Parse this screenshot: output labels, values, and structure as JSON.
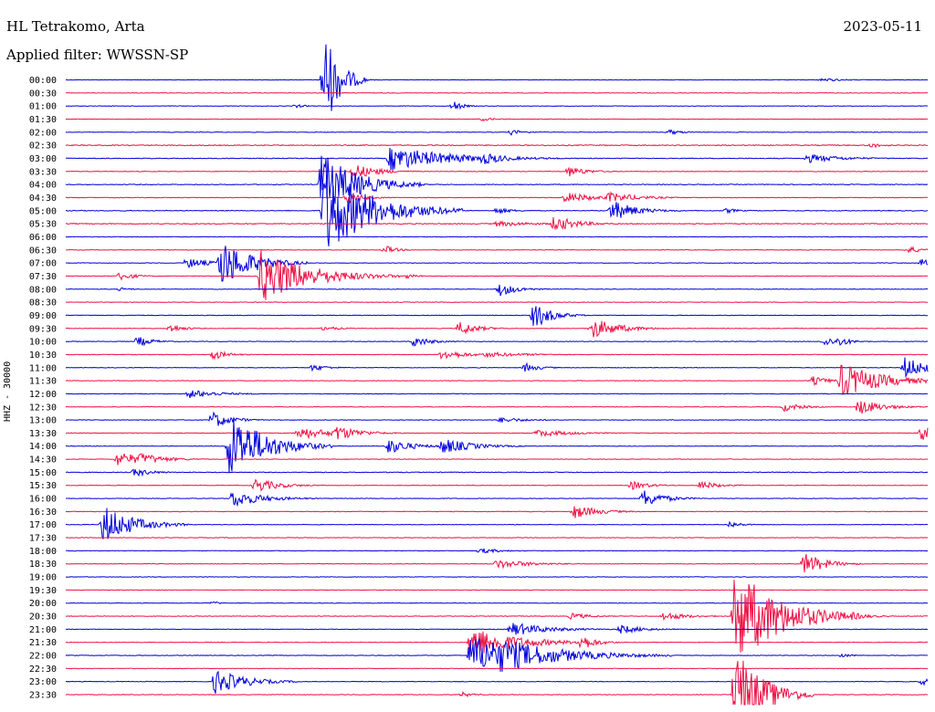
{
  "header": {
    "station": "HL Tetrakomo, Arta",
    "date": "2023-05-11",
    "filter_prefix": "Applied filter: ",
    "filter": "WWSSN-SP"
  },
  "channel_label": "HHZ - 30000",
  "colors": {
    "odd_trace": "#0000dd",
    "even_trace": "#ee1144"
  },
  "chart_data": {
    "type": "line",
    "x_unit": "minutes within row (0-30)",
    "rows": [
      "00:00",
      "00:30",
      "01:00",
      "01:30",
      "02:00",
      "02:30",
      "03:00",
      "03:30",
      "04:00",
      "04:30",
      "05:00",
      "05:30",
      "06:00",
      "06:30",
      "07:00",
      "07:30",
      "08:00",
      "08:30",
      "09:00",
      "09:30",
      "10:00",
      "10:30",
      "11:00",
      "11:30",
      "12:00",
      "12:30",
      "13:00",
      "13:30",
      "14:00",
      "14:30",
      "15:00",
      "15:30",
      "16:00",
      "16:30",
      "17:00",
      "17:30",
      "18:00",
      "18:30",
      "19:00",
      "19:30",
      "20:00",
      "20:30",
      "21:00",
      "21:30",
      "22:00",
      "22:30",
      "23:00",
      "23:30"
    ],
    "noise": [
      0.2,
      0.3,
      0.3,
      0.2,
      0.3,
      0.5,
      0.4,
      0.3,
      0.4,
      0.3,
      0.4,
      0.5,
      0.3,
      0.3,
      0.3,
      0.3,
      0.3,
      0.3,
      0.3,
      0.3,
      0.3,
      0.3,
      0.3,
      0.3,
      0.3,
      0.3,
      0.3,
      0.3,
      0.3,
      0.3,
      0.4,
      0.3,
      0.3,
      0.3,
      0.3,
      0.3,
      0.3,
      0.3,
      0.3,
      0.3,
      0.3,
      0.3,
      0.3,
      0.3,
      0.3,
      0.3,
      0.3,
      0.3
    ],
    "events": [
      {
        "row": 0,
        "t": 9.8,
        "amp": 2,
        "dur": 0.6
      },
      {
        "row": 0,
        "t": 26.3,
        "amp": 2,
        "dur": 0.8
      },
      {
        "row": 0,
        "t": 9.0,
        "amp": 57,
        "dur": 0.5
      },
      {
        "row": 2,
        "t": 13.5,
        "amp": 6,
        "dur": 0.3
      },
      {
        "row": 2,
        "t": 8.0,
        "amp": 2,
        "dur": 0.4
      },
      {
        "row": 3,
        "t": 14.5,
        "amp": 2,
        "dur": 0.5
      },
      {
        "row": 4,
        "t": 15.5,
        "amp": 3,
        "dur": 0.5
      },
      {
        "row": 4,
        "t": 21.0,
        "amp": 3,
        "dur": 0.5
      },
      {
        "row": 5,
        "t": 28.0,
        "amp": 3,
        "dur": 0.5
      },
      {
        "row": 6,
        "t": 11.3,
        "amp": 14,
        "dur": 2.0
      },
      {
        "row": 6,
        "t": 14.5,
        "amp": 7,
        "dur": 0.9
      },
      {
        "row": 6,
        "t": 25.8,
        "amp": 5,
        "dur": 1.2
      },
      {
        "row": 7,
        "t": 10.0,
        "amp": 9,
        "dur": 0.8
      },
      {
        "row": 7,
        "t": 17.5,
        "amp": 6,
        "dur": 0.6
      },
      {
        "row": 8,
        "t": 8.9,
        "amp": 35,
        "dur": 1.2
      },
      {
        "row": 9,
        "t": 9.8,
        "amp": 8,
        "dur": 0.5
      },
      {
        "row": 9,
        "t": 17.4,
        "amp": 6,
        "dur": 1.0
      },
      {
        "row": 9,
        "t": 18.9,
        "amp": 6,
        "dur": 1.0
      },
      {
        "row": 10,
        "t": 9.0,
        "amp": 48,
        "dur": 1.6
      },
      {
        "row": 10,
        "t": 11.5,
        "amp": 4,
        "dur": 0.4
      },
      {
        "row": 10,
        "t": 15.0,
        "amp": 4,
        "dur": 0.5
      },
      {
        "row": 10,
        "t": 19.0,
        "amp": 12,
        "dur": 0.8
      },
      {
        "row": 10,
        "t": 23.0,
        "amp": 3,
        "dur": 0.4
      },
      {
        "row": 11,
        "t": 17.0,
        "amp": 9,
        "dur": 0.8
      },
      {
        "row": 11,
        "t": 15.0,
        "amp": 3,
        "dur": 1.5
      },
      {
        "row": 13,
        "t": 11.1,
        "amp": 5,
        "dur": 0.4
      },
      {
        "row": 13,
        "t": 29.3,
        "amp": 4,
        "dur": 0.6
      },
      {
        "row": 14,
        "t": 4.2,
        "amp": 6,
        "dur": 0.8
      },
      {
        "row": 14,
        "t": 5.4,
        "amp": 28,
        "dur": 1.0
      },
      {
        "row": 14,
        "t": 29.8,
        "amp": 5,
        "dur": 0.3
      },
      {
        "row": 15,
        "t": 1.9,
        "amp": 5,
        "dur": 0.5
      },
      {
        "row": 15,
        "t": 6.8,
        "amp": 30,
        "dur": 1.6
      },
      {
        "row": 15,
        "t": 11.9,
        "amp": 4,
        "dur": 0.3
      },
      {
        "row": 16,
        "t": 1.9,
        "amp": 2,
        "dur": 0.4
      },
      {
        "row": 16,
        "t": 15.1,
        "amp": 8,
        "dur": 0.6
      },
      {
        "row": 18,
        "t": 16.3,
        "amp": 15,
        "dur": 0.6
      },
      {
        "row": 19,
        "t": 3.6,
        "amp": 5,
        "dur": 0.5
      },
      {
        "row": 19,
        "t": 13.7,
        "amp": 8,
        "dur": 0.6
      },
      {
        "row": 19,
        "t": 18.3,
        "amp": 12,
        "dur": 0.9
      },
      {
        "row": 19,
        "t": 9.0,
        "amp": 3,
        "dur": 0.5
      },
      {
        "row": 20,
        "t": 2.5,
        "amp": 6,
        "dur": 0.5
      },
      {
        "row": 20,
        "t": 12.1,
        "amp": 6,
        "dur": 0.6
      },
      {
        "row": 20,
        "t": 26.4,
        "amp": 6,
        "dur": 0.4
      },
      {
        "row": 20,
        "t": 26.9,
        "amp": 6,
        "dur": 0.4
      },
      {
        "row": 21,
        "t": 5.1,
        "amp": 6,
        "dur": 0.5
      },
      {
        "row": 21,
        "t": 13.1,
        "amp": 6,
        "dur": 0.8
      },
      {
        "row": 21,
        "t": 14.6,
        "amp": 3,
        "dur": 1.5
      },
      {
        "row": 22,
        "t": 8.6,
        "amp": 4,
        "dur": 0.5
      },
      {
        "row": 22,
        "t": 16.0,
        "amp": 5,
        "dur": 0.5
      },
      {
        "row": 22,
        "t": 29.2,
        "amp": 12,
        "dur": 0.9
      },
      {
        "row": 23,
        "t": 27.0,
        "amp": 20,
        "dur": 1.3
      },
      {
        "row": 23,
        "t": 26.0,
        "amp": 5,
        "dur": 0.6
      },
      {
        "row": 24,
        "t": 4.3,
        "amp": 5,
        "dur": 1.0
      },
      {
        "row": 25,
        "t": 25.0,
        "amp": 5,
        "dur": 0.6
      },
      {
        "row": 25,
        "t": 27.6,
        "amp": 9,
        "dur": 0.8
      },
      {
        "row": 26,
        "t": 5.1,
        "amp": 10,
        "dur": 0.6
      },
      {
        "row": 26,
        "t": 15.1,
        "amp": 3,
        "dur": 1.0
      },
      {
        "row": 27,
        "t": 8.1,
        "amp": 7,
        "dur": 1.2
      },
      {
        "row": 27,
        "t": 9.4,
        "amp": 9,
        "dur": 0.8
      },
      {
        "row": 27,
        "t": 16.4,
        "amp": 4,
        "dur": 1.3
      },
      {
        "row": 27,
        "t": 29.8,
        "amp": 8,
        "dur": 1.0
      },
      {
        "row": 28,
        "t": 5.7,
        "amp": 38,
        "dur": 1.2
      },
      {
        "row": 28,
        "t": 11.2,
        "amp": 9,
        "dur": 0.8
      },
      {
        "row": 28,
        "t": 13.1,
        "amp": 9,
        "dur": 1.0
      },
      {
        "row": 29,
        "t": 1.8,
        "amp": 8,
        "dur": 1.0
      },
      {
        "row": 29,
        "t": 2.6,
        "amp": 7,
        "dur": 0.8
      },
      {
        "row": 30,
        "t": 2.4,
        "amp": 5,
        "dur": 0.6
      },
      {
        "row": 31,
        "t": 6.6,
        "amp": 8,
        "dur": 0.8
      },
      {
        "row": 31,
        "t": 19.7,
        "amp": 5,
        "dur": 0.6
      },
      {
        "row": 31,
        "t": 22.1,
        "amp": 5,
        "dur": 0.6
      },
      {
        "row": 32,
        "t": 5.8,
        "amp": 10,
        "dur": 1.0
      },
      {
        "row": 32,
        "t": 20.1,
        "amp": 10,
        "dur": 0.7
      },
      {
        "row": 33,
        "t": 17.7,
        "amp": 8,
        "dur": 0.8
      },
      {
        "row": 34,
        "t": 1.3,
        "amp": 22,
        "dur": 1.0
      },
      {
        "row": 34,
        "t": 23.1,
        "amp": 4,
        "dur": 0.4
      },
      {
        "row": 36,
        "t": 14.4,
        "amp": 3,
        "dur": 0.8
      },
      {
        "row": 37,
        "t": 15.0,
        "amp": 5,
        "dur": 1.2
      },
      {
        "row": 37,
        "t": 25.7,
        "amp": 13,
        "dur": 0.7
      },
      {
        "row": 40,
        "t": 5.1,
        "amp": 2,
        "dur": 0.3
      },
      {
        "row": 41,
        "t": 23.3,
        "amp": 55,
        "dur": 1.5
      },
      {
        "row": 41,
        "t": 20.8,
        "amp": 5,
        "dur": 0.8
      },
      {
        "row": 41,
        "t": 27.3,
        "amp": 5,
        "dur": 0.6
      },
      {
        "row": 41,
        "t": 17.6,
        "amp": 4,
        "dur": 0.6
      },
      {
        "row": 42,
        "t": 15.5,
        "amp": 8,
        "dur": 1.2
      },
      {
        "row": 42,
        "t": 19.3,
        "amp": 5,
        "dur": 0.8
      },
      {
        "row": 43,
        "t": 14.1,
        "amp": 18,
        "dur": 1.5
      },
      {
        "row": 43,
        "t": 17.9,
        "amp": 10,
        "dur": 0.5
      },
      {
        "row": 44,
        "t": 14.1,
        "amp": 22,
        "dur": 2.2
      },
      {
        "row": 44,
        "t": 15.1,
        "amp": 20,
        "dur": 2.0
      },
      {
        "row": 44,
        "t": 27.0,
        "amp": 3,
        "dur": 0.3
      },
      {
        "row": 46,
        "t": 5.2,
        "amp": 14,
        "dur": 1.0
      },
      {
        "row": 46,
        "t": 29.8,
        "amp": 4,
        "dur": 0.4
      },
      {
        "row": 47,
        "t": 13.8,
        "amp": 3,
        "dur": 0.4
      },
      {
        "row": 47,
        "t": 23.3,
        "amp": 58,
        "dur": 0.9
      }
    ]
  }
}
